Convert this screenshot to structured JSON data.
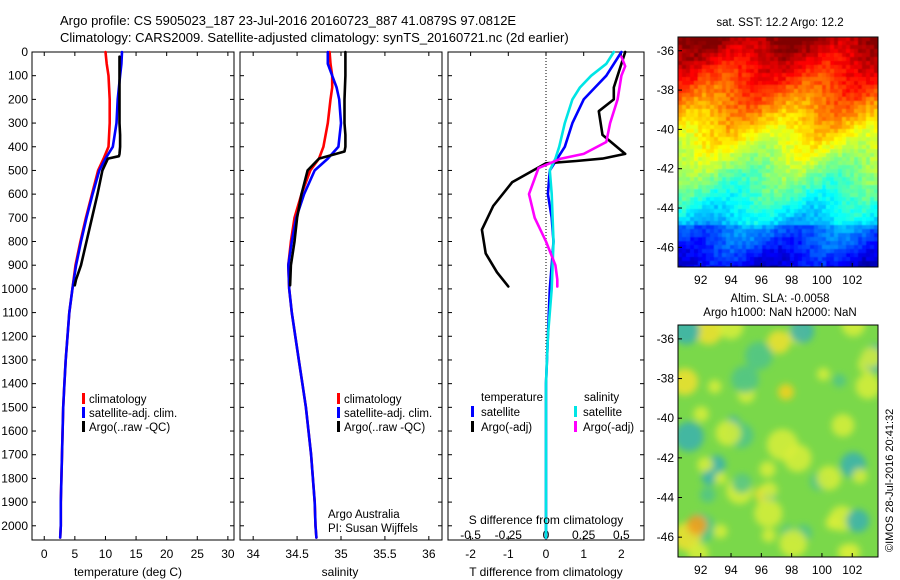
{
  "header": {
    "line1": "Argo profile: CS 5905023_187 23-Jul-2016 20160723_887 41.0879S 97.0812E",
    "line2": "Climatology: CARS2009. Satellite-adjusted climatology: synTS_20160721.nc (2d earlier)"
  },
  "footer": {
    "credit": "Argo Australia",
    "pi": "PI: Susan Wijffels",
    "stamp": "©IMOS 28-Jul-2016 20:41:32"
  },
  "colors": {
    "climatology": "#ff0000",
    "satellite": "#0000ff",
    "argo": "#000000",
    "s_satellite": "#00e5e5",
    "s_argo": "#ff00ff"
  },
  "chart_data": [
    {
      "type": "line",
      "panel": "temperature",
      "xlabel": "temperature (deg C)",
      "ylabel": "",
      "xlim": [
        -2,
        31
      ],
      "ylim": [
        2060,
        0
      ],
      "x_ticks": [
        0,
        5,
        10,
        15,
        20,
        25,
        30
      ],
      "y_ticks": [
        0,
        100,
        200,
        300,
        400,
        500,
        600,
        700,
        800,
        900,
        1000,
        1100,
        1200,
        1300,
        1400,
        1500,
        1600,
        1700,
        1800,
        1900,
        2000
      ],
      "legend": [
        "climatology",
        "satellite-adj. clim.",
        "Argo(..raw -QC)"
      ],
      "series": [
        {
          "name": "climatology",
          "x": [
            10,
            10.2,
            10.5,
            10.6,
            10.7,
            10.7,
            10.5,
            9.7,
            8.8,
            7.8,
            6.8,
            5.9,
            5.1,
            4.6,
            4.1,
            3.8,
            3.5,
            3.3,
            3.1,
            3.0,
            2.9,
            2.8,
            2.7,
            2.7,
            2.6
          ],
          "y": [
            0,
            50,
            100,
            150,
            200,
            300,
            400,
            450,
            500,
            600,
            700,
            800,
            900,
            1000,
            1100,
            1200,
            1300,
            1400,
            1500,
            1600,
            1700,
            1800,
            1900,
            2000,
            2050
          ]
        },
        {
          "name": "satellite-adj. clim.",
          "x": [
            12.7,
            12.6,
            12.4,
            12.2,
            12.0,
            11.8,
            11.2,
            10.0,
            9.0,
            7.9,
            6.9,
            6.0,
            5.2,
            4.6,
            4.1,
            3.8,
            3.5,
            3.3,
            3.1,
            3.0,
            2.9,
            2.8,
            2.7,
            2.7,
            2.6
          ],
          "y": [
            0,
            50,
            100,
            150,
            200,
            300,
            400,
            450,
            500,
            600,
            700,
            800,
            900,
            1000,
            1100,
            1200,
            1300,
            1400,
            1500,
            1600,
            1700,
            1800,
            1900,
            2000,
            2050
          ]
        },
        {
          "name": "Argo(..raw -QC)",
          "x": [
            12.3,
            12.3,
            12.3,
            12.3,
            12.4,
            12.4,
            12.3,
            12.2,
            10.4,
            9.5,
            8.7,
            7.8,
            6.9,
            6.0,
            5.2,
            5.0
          ],
          "y": [
            20,
            100,
            200,
            300,
            350,
            400,
            430,
            440,
            450,
            500,
            600,
            700,
            800,
            900,
            960,
            985
          ]
        }
      ]
    },
    {
      "type": "line",
      "panel": "salinity",
      "xlabel": "salinity",
      "xlim": [
        33.85,
        36.15
      ],
      "ylim": [
        2060,
        0
      ],
      "x_ticks": [
        34,
        34.5,
        35,
        35.5,
        36
      ],
      "legend": [
        "climatology",
        "satellite-adj. clim.",
        "Argo(..raw -QC)"
      ],
      "series": [
        {
          "name": "climatology",
          "x": [
            34.87,
            34.88,
            34.9,
            34.9,
            34.88,
            34.85,
            34.8,
            34.75,
            34.65,
            34.55,
            34.47,
            34.43,
            34.4,
            34.41,
            34.44,
            34.48,
            34.52,
            34.56,
            34.6,
            34.63,
            34.66,
            34.68,
            34.7,
            34.71,
            34.72
          ],
          "y": [
            0,
            50,
            100,
            150,
            200,
            300,
            400,
            450,
            500,
            600,
            700,
            800,
            900,
            1000,
            1100,
            1200,
            1300,
            1400,
            1500,
            1600,
            1700,
            1800,
            1900,
            2000,
            2050
          ]
        },
        {
          "name": "satellite-adj. clim.",
          "x": [
            34.85,
            34.85,
            34.9,
            34.95,
            34.98,
            35.0,
            34.97,
            34.85,
            34.7,
            34.58,
            34.49,
            34.44,
            34.4,
            34.41,
            34.44,
            34.48,
            34.52,
            34.56,
            34.6,
            34.63,
            34.66,
            34.68,
            34.7,
            34.71,
            34.72
          ],
          "y": [
            0,
            50,
            100,
            150,
            200,
            300,
            400,
            450,
            500,
            600,
            700,
            800,
            900,
            1000,
            1100,
            1200,
            1300,
            1400,
            1500,
            1600,
            1700,
            1800,
            1900,
            2000,
            2050
          ]
        },
        {
          "name": "Argo(..raw -QC)",
          "x": [
            35.05,
            35.05,
            35.04,
            35.04,
            35.04,
            35.05,
            35.05,
            35.04,
            34.75,
            34.62,
            34.55,
            34.5,
            34.47,
            34.43,
            34.42
          ],
          "y": [
            0,
            100,
            200,
            250,
            300,
            350,
            400,
            420,
            450,
            500,
            600,
            700,
            800,
            900,
            985
          ]
        }
      ]
    },
    {
      "type": "line",
      "panel": "differences",
      "xlabel": "T difference from climatology",
      "xlabel2": "S difference from climatology",
      "xlim": [
        -2.6,
        2.6
      ],
      "ylim": [
        2060,
        0
      ],
      "x_ticks": [
        -2,
        -1,
        0,
        1,
        2
      ],
      "x_ticks_s": [
        "-0.5",
        "-0.25",
        "0",
        "0.25",
        "0.5"
      ],
      "legend_titles": [
        "temperature",
        "salinity"
      ],
      "legend": [
        "satellite",
        "Argo(-adj)",
        "satellite",
        "Argo(-adj)"
      ],
      "series": [
        {
          "name": "satellite",
          "x": [
            2.0,
            1.6,
            1.3,
            1.0,
            0.7,
            0.5,
            0.3,
            0.1,
            0.05,
            0.15,
            0.2,
            0.15,
            0.1,
            0.05,
            0,
            0,
            0,
            0,
            0,
            0,
            0,
            0
          ],
          "y": [
            0,
            100,
            150,
            200,
            300,
            400,
            450,
            500,
            600,
            700,
            800,
            900,
            1000,
            1200,
            1400,
            1500,
            1600,
            1700,
            1800,
            1900,
            2000,
            2050
          ]
        },
        {
          "name": "Argo(-adj)",
          "x": [
            2.1,
            1.9,
            1.8,
            1.8,
            1.4,
            1.5,
            2.1,
            1.5,
            0.8,
            0,
            -0.9,
            -1.4,
            -1.7,
            -1.6,
            -1.3,
            -1.0
          ],
          "y": [
            0,
            100,
            150,
            200,
            250,
            350,
            430,
            450,
            460,
            470,
            550,
            650,
            750,
            850,
            930,
            990
          ]
        },
        {
          "name": "satellite",
          "x": [
            1.8,
            1.6,
            1.2,
            0.9,
            0.7,
            0.5,
            0.35,
            0.25,
            0.1,
            0.15,
            0.2,
            0.15,
            0.05,
            0,
            0,
            0,
            0,
            0
          ],
          "y": [
            0,
            50,
            100,
            150,
            200,
            300,
            400,
            450,
            500,
            600,
            800,
            1000,
            1200,
            1400,
            1600,
            1800,
            2000,
            2050
          ]
        },
        {
          "name": "Argo(-adj)",
          "x": [
            2.0,
            2.1,
            2.0,
            1.9,
            1.7,
            1.6,
            1.0,
            0.4,
            -0.2,
            -0.45,
            -0.3,
            0,
            0.25,
            0.3,
            0.3
          ],
          "y": [
            20,
            60,
            100,
            200,
            300,
            380,
            430,
            450,
            490,
            600,
            700,
            800,
            900,
            960,
            990
          ]
        }
      ]
    },
    {
      "type": "heatmap",
      "panel": "sst",
      "title": "sat. SST: 12.2 Argo: 12.2",
      "x_ticks": [
        92,
        94,
        96,
        98,
        100,
        102
      ],
      "y_ticks": [
        -36,
        -38,
        -40,
        -42,
        -44,
        -46
      ],
      "xlim": [
        90.5,
        103.7
      ],
      "ylim": [
        -47,
        -35.3
      ]
    },
    {
      "type": "heatmap",
      "panel": "sla",
      "title": "Altim. SLA: -0.0058",
      "subtitle": "Argo h1000: NaN h2000: NaN",
      "x_ticks": [
        92,
        94,
        96,
        98,
        100,
        102
      ],
      "y_ticks": [
        -36,
        -38,
        -40,
        -42,
        -44,
        -46
      ],
      "xlim": [
        90.5,
        103.7
      ],
      "ylim": [
        -47,
        -35.3
      ]
    }
  ]
}
